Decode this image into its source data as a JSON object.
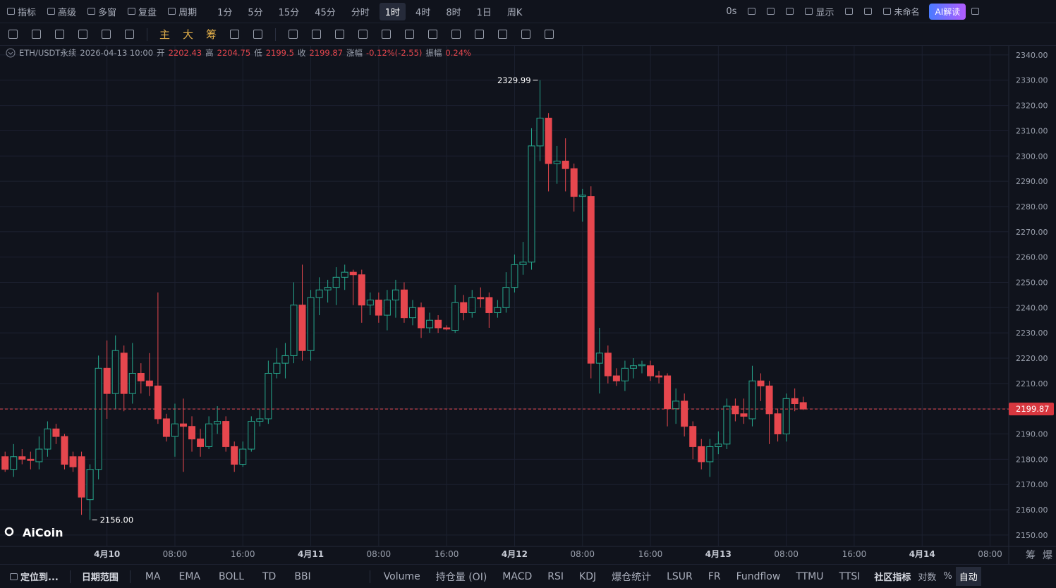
{
  "top_bar": {
    "left": [
      "指标",
      "高级",
      "多窗",
      "复盘",
      "周期"
    ],
    "intervals": [
      "1分",
      "5分",
      "15分",
      "45分",
      "分时",
      "1时",
      "4时",
      "8时",
      "1日",
      "周K"
    ],
    "active_interval": 5,
    "right": [
      "0s",
      "显示",
      "未命名",
      "AI解读"
    ]
  },
  "drawing_bar": [
    "主",
    "大",
    "筹"
  ],
  "chart_data": {
    "type": "candlestick",
    "symbol": "ETH/USDT永续",
    "time": "2026-04-13 10:00",
    "info_labels": {
      "open": "开",
      "high": "高",
      "low": "低",
      "close": "收",
      "change": "涨幅",
      "amplitude": "振幅"
    },
    "change": "-0.12%(-2.55)",
    "amplitude": "0.24%",
    "low_label": "2156.00",
    "series": {
      "up_color": "#26a68c",
      "down_color": "#e6474e",
      "open": [
        2181,
        2176,
        2181,
        2180,
        2179,
        2184,
        2192,
        2189,
        2181,
        2181,
        2164,
        2176,
        2216,
        2206,
        2222,
        2206,
        2214,
        2211,
        2209,
        2196,
        2189,
        2194,
        2193,
        2188,
        2185,
        2194,
        2195,
        2185,
        2178,
        2184,
        2195,
        2196,
        2214,
        2218,
        2221,
        2241,
        2223,
        2244,
        2247,
        2248,
        2252,
        2254,
        2253,
        2241,
        2243,
        2237,
        2243,
        2247,
        2236,
        2240,
        2232,
        2235,
        2232,
        2231,
        2242,
        2238,
        2244,
        2244,
        2238,
        2240,
        2248,
        2257,
        2258,
        2304,
        2315,
        2297,
        2298,
        2295,
        2284,
        2284,
        2218,
        2222,
        2213,
        2211,
        2216,
        2217,
        2217,
        2213,
        2213,
        2200,
        2203,
        2193,
        2185,
        2179,
        2185,
        2186,
        2201,
        2198,
        2196,
        2211,
        2209,
        2198,
        2190,
        2204,
        2202.43
      ],
      "high": [
        2183,
        2186,
        2184,
        2183,
        2189,
        2195,
        2194,
        2190,
        2183,
        2183,
        2178,
        2221,
        2227,
        2229,
        2225,
        2226,
        2218,
        2222,
        2246,
        2198,
        2202,
        2204,
        2197,
        2192,
        2197,
        2201,
        2197,
        2187,
        2187,
        2197,
        2200,
        2219,
        2224,
        2226,
        2250,
        2257,
        2247,
        2252,
        2251,
        2256,
        2257,
        2255,
        2255,
        2246,
        2246,
        2247,
        2251,
        2250,
        2243,
        2242,
        2238,
        2237,
        2233,
        2249,
        2245,
        2247,
        2248,
        2246,
        2243,
        2254,
        2261,
        2266,
        2311,
        2329.99,
        2317,
        2304,
        2307,
        2297,
        2287,
        2288,
        2232,
        2225,
        2216,
        2219,
        2220,
        2219,
        2219,
        2215,
        2214,
        2208,
        2206,
        2195,
        2188,
        2188,
        2191,
        2204,
        2204,
        2204,
        2217,
        2214,
        2211,
        2200,
        2206,
        2208,
        2204.75
      ],
      "low": [
        2175,
        2173,
        2178,
        2176,
        2176,
        2181,
        2186,
        2176,
        2175,
        2158,
        2156,
        2172,
        2196,
        2200,
        2199,
        2202,
        2206,
        2205,
        2194,
        2187,
        2181,
        2175,
        2183,
        2181,
        2184,
        2190,
        2183,
        2175,
        2177,
        2183,
        2193,
        2194,
        2212,
        2212,
        2218,
        2219,
        2219,
        2237,
        2242,
        2241,
        2247,
        2241,
        2234,
        2237,
        2234,
        2231,
        2236,
        2234,
        2233,
        2228,
        2230,
        2230,
        2231,
        2230,
        2235,
        2236,
        2240,
        2232,
        2236,
        2238,
        2246,
        2253,
        2255,
        2298,
        2286,
        2289,
        2286,
        2278,
        2274,
        2212,
        2206,
        2210,
        2209,
        2207,
        2212,
        2214,
        2211,
        2210,
        2193,
        2194,
        2189,
        2180,
        2176,
        2173,
        2182,
        2184,
        2195,
        2194,
        2193,
        2203,
        2186,
        2187,
        2187,
        2199,
        2199.5
      ],
      "close": [
        2176,
        2181,
        2180,
        2179.5,
        2184,
        2192,
        2189,
        2178,
        2177,
        2165,
        2176,
        2216,
        2206,
        2223,
        2206,
        2214,
        2211,
        2209,
        2196,
        2189,
        2194,
        2193,
        2188,
        2185,
        2194,
        2195,
        2185,
        2178,
        2184,
        2195,
        2196,
        2214,
        2218,
        2221,
        2241,
        2223,
        2244,
        2247,
        2248,
        2252,
        2254,
        2253,
        2241,
        2243,
        2237,
        2243,
        2247,
        2236,
        2240,
        2232,
        2235,
        2232,
        2231.5,
        2242,
        2238,
        2244,
        2243.5,
        2238,
        2240,
        2248,
        2257,
        2258,
        2304,
        2315,
        2297,
        2298,
        2295,
        2284,
        2284.5,
        2218,
        2222,
        2213,
        2211,
        2216,
        2217,
        2217.5,
        2213,
        2212.5,
        2200,
        2203,
        2193,
        2185,
        2179,
        2185,
        2186,
        2201,
        2198,
        2197,
        2211,
        2209,
        2198,
        2190,
        2204,
        2202,
        2199.87
      ]
    },
    "xlim": [
      -0.6,
      118.2
    ],
    "xticks": [
      {
        "value": 12,
        "label": "4月10"
      },
      {
        "value": 20,
        "label": "08:00"
      },
      {
        "value": 28,
        "label": "16:00"
      },
      {
        "value": 36,
        "label": "4月11"
      },
      {
        "value": 44,
        "label": "08:00"
      },
      {
        "value": 52,
        "label": "16:00"
      },
      {
        "value": 60,
        "label": "4月12"
      },
      {
        "value": 68,
        "label": "08:00"
      },
      {
        "value": 76,
        "label": "16:00"
      },
      {
        "value": 84,
        "label": "4月13"
      },
      {
        "value": 92,
        "label": "08:00"
      },
      {
        "value": 100,
        "label": "16:00"
      },
      {
        "value": 108,
        "label": "4月14"
      },
      {
        "value": 116,
        "label": "08:00"
      }
    ],
    "ylim": [
      2145.5,
      2343.6
    ],
    "yticks": [
      {
        "value": 2150,
        "label": "2150.00"
      },
      {
        "value": 2160,
        "label": "2160.00"
      },
      {
        "value": 2170,
        "label": "2170.00"
      },
      {
        "value": 2180,
        "label": "2180.00"
      },
      {
        "value": 2190,
        "label": "2190.00"
      },
      {
        "value": 2200,
        "label": "2200.00"
      },
      {
        "value": 2210,
        "label": "2210.00"
      },
      {
        "value": 2220,
        "label": "2220.00"
      },
      {
        "value": 2230,
        "label": "2230.00"
      },
      {
        "value": 2240,
        "label": "2240.00"
      },
      {
        "value": 2250,
        "label": "2250.00"
      },
      {
        "value": 2260,
        "label": "2260.00"
      },
      {
        "value": 2270,
        "label": "2270.00"
      },
      {
        "value": 2280,
        "label": "2280.00"
      },
      {
        "value": 2290,
        "label": "2290.00"
      },
      {
        "value": 2300,
        "label": "2300.00"
      },
      {
        "value": 2310,
        "label": "2310.00"
      },
      {
        "value": 2320,
        "label": "2320.00"
      },
      {
        "value": 2330,
        "label": "2330.00"
      },
      {
        "value": 2340,
        "label": "2340.00"
      }
    ],
    "grid": true
  },
  "axis_corner": [
    "筹",
    "爆"
  ],
  "watermark": "AiCoin",
  "bottom_bar": {
    "left": [
      "定位到...",
      "日期范围"
    ],
    "indicators": [
      "MA",
      "EMA",
      "BOLL",
      "TD",
      "BBI"
    ],
    "sub_indicators": [
      "Volume",
      "持仓量 (OI)",
      "MACD",
      "RSI",
      "KDJ",
      "爆仓统计",
      "LSUR",
      "FR",
      "Fundflow",
      "TTMU",
      "TTSI"
    ],
    "right": [
      "社区指标",
      "对数",
      "%",
      "自动"
    ]
  }
}
